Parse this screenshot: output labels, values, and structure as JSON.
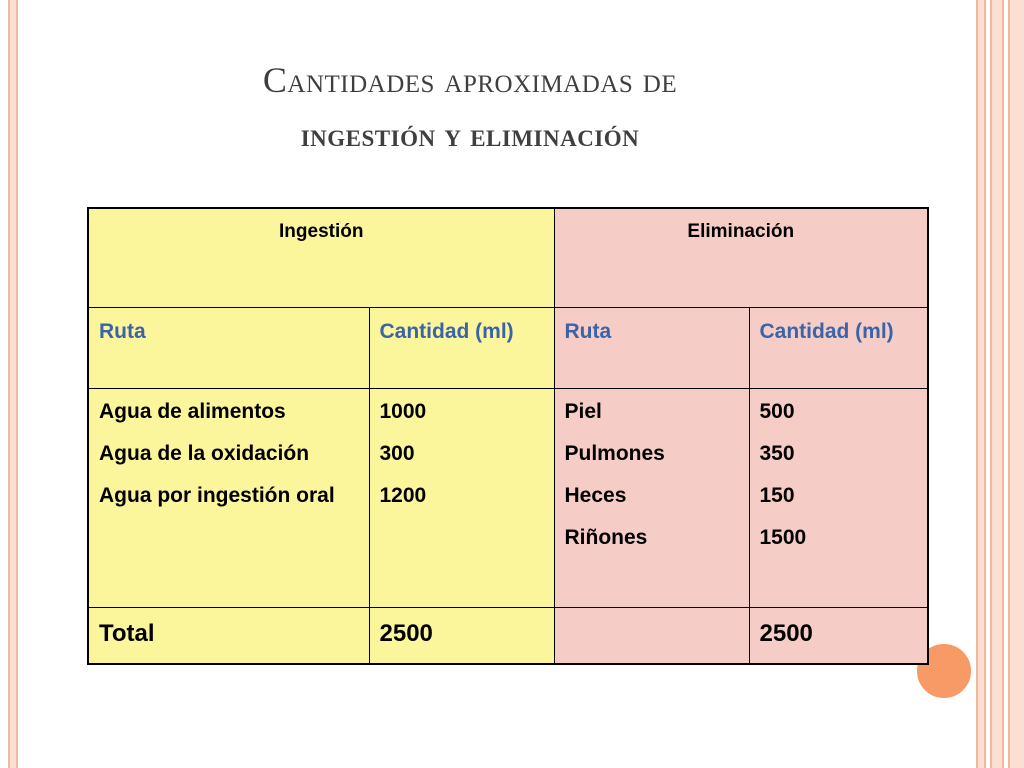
{
  "slide": {
    "title_line1": "Cantidades aproximadas de",
    "title_line2": "ingestión y eliminación",
    "colors": {
      "ingestion_bg": "#fbf59c",
      "eliminacion_bg": "#f6cdc6",
      "column_header_text": "#3a63a8",
      "accent_dot": "#f79a66"
    }
  },
  "table": {
    "headers": {
      "ingestion": "Ingestión",
      "eliminacion": "Eliminación"
    },
    "column_headers": [
      "Ruta",
      "Cantidad (ml)",
      "Ruta",
      "Cantidad (ml)"
    ],
    "ingestion_routes": [
      "Agua de alimentos",
      "Agua de la oxidación",
      "Agua por ingestión oral"
    ],
    "ingestion_amounts": [
      "1000",
      "300",
      "1200"
    ],
    "eliminacion_routes": [
      "Piel",
      "Pulmones",
      "Heces",
      "Riñones"
    ],
    "eliminacion_amounts": [
      "500",
      "350",
      "150",
      "1500"
    ],
    "total": {
      "label": "Total",
      "ingestion_total": "2500",
      "eliminacion_total": "2500"
    }
  }
}
